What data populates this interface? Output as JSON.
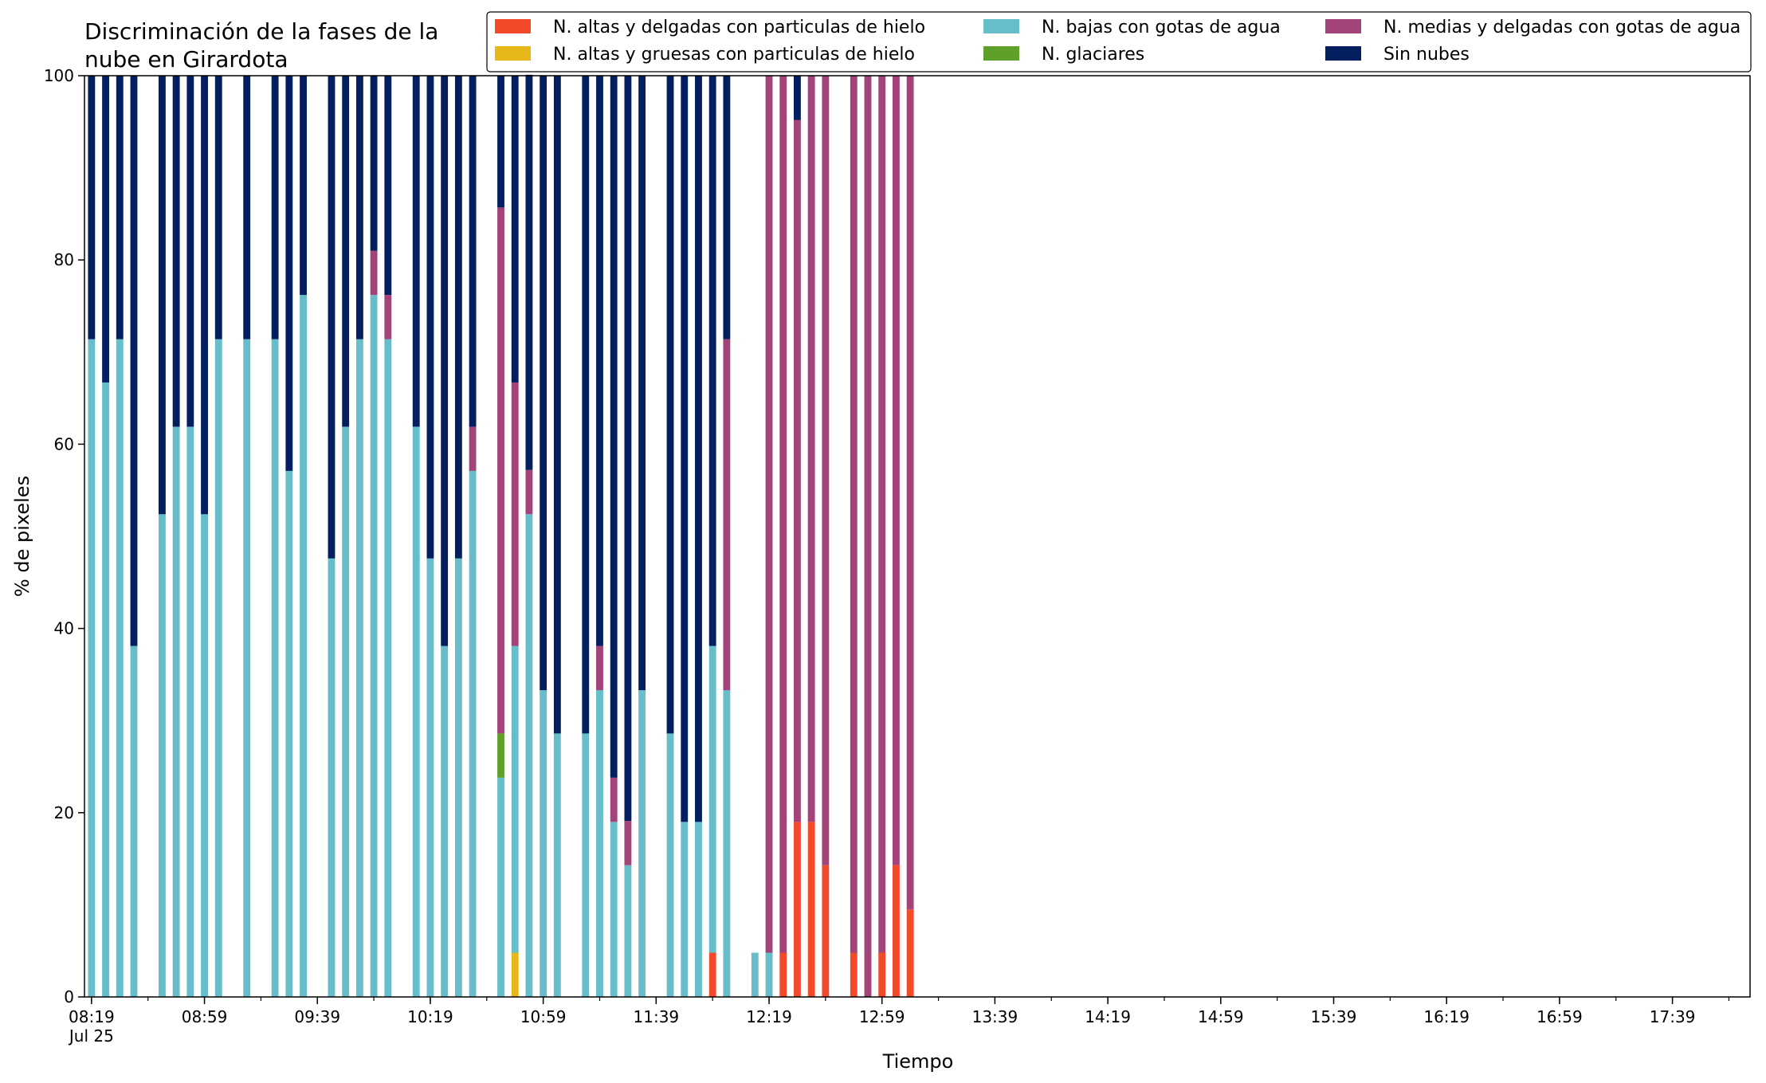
{
  "chart_data": {
    "type": "bar",
    "stacked": true,
    "title": "Discriminación de la fases de la nube en Girardota",
    "title_lines": [
      "Discriminación de la fases de la",
      "nube en Girardota"
    ],
    "xlabel": "Tiempo",
    "ylabel": "% de pixeles",
    "ylim": [
      0,
      100
    ],
    "yticks": [
      0,
      20,
      40,
      60,
      80,
      100
    ],
    "x_start": "08:19",
    "x_end": "18:04",
    "slot_minutes": 5,
    "xticks": [
      {
        "time": "08:19",
        "label": "08:19",
        "sublabel": "Jul 25"
      },
      {
        "time": "08:59",
        "label": "08:59"
      },
      {
        "time": "09:39",
        "label": "09:39"
      },
      {
        "time": "10:19",
        "label": "10:19"
      },
      {
        "time": "10:59",
        "label": "10:59"
      },
      {
        "time": "11:39",
        "label": "11:39"
      },
      {
        "time": "12:19",
        "label": "12:19"
      },
      {
        "time": "12:59",
        "label": "12:59"
      },
      {
        "time": "13:39",
        "label": "13:39"
      },
      {
        "time": "14:19",
        "label": "14:19"
      },
      {
        "time": "14:59",
        "label": "14:59"
      },
      {
        "time": "15:39",
        "label": "15:39"
      },
      {
        "time": "16:19",
        "label": "16:19"
      },
      {
        "time": "16:59",
        "label": "16:59"
      },
      {
        "time": "17:39",
        "label": "17:39"
      }
    ],
    "grid": false,
    "legend_position": "top-right",
    "series": [
      {
        "name": "N. altas y delgadas con particulas de hielo",
        "color": "#f24a2a"
      },
      {
        "name": "N. altas y gruesas con particulas de hielo",
        "color": "#e8b71a"
      },
      {
        "name": "N. bajas con gotas de agua",
        "color": "#67bdc9"
      },
      {
        "name": "N. glaciares",
        "color": "#5fa02a"
      },
      {
        "name": "N. medias y delgadas con gotas de agua",
        "color": "#a2437a"
      },
      {
        "name": "Sin nubes",
        "color": "#031f5f"
      }
    ],
    "stack_order": [
      0,
      1,
      2,
      3,
      4,
      5
    ],
    "legend_order": [
      0,
      1,
      2,
      3,
      4,
      5
    ],
    "bars": [
      {
        "time": "08:19",
        "values": [
          0,
          0,
          71.4,
          0,
          0,
          28.6
        ]
      },
      {
        "time": "08:24",
        "values": [
          0,
          0,
          66.7,
          0,
          0,
          33.3
        ]
      },
      {
        "time": "08:29",
        "values": [
          0,
          0,
          71.4,
          0,
          0,
          28.6
        ]
      },
      {
        "time": "08:34",
        "values": [
          0,
          0,
          38.1,
          0,
          0,
          61.9
        ]
      },
      {
        "time": "08:44",
        "values": [
          0,
          0,
          52.4,
          0,
          0,
          47.6
        ]
      },
      {
        "time": "08:49",
        "values": [
          0,
          0,
          61.9,
          0,
          0,
          38.1
        ]
      },
      {
        "time": "08:54",
        "values": [
          0,
          0,
          61.9,
          0,
          0,
          38.1
        ]
      },
      {
        "time": "08:59",
        "values": [
          0,
          0,
          52.4,
          0,
          0,
          47.6
        ]
      },
      {
        "time": "09:04",
        "values": [
          0,
          0,
          71.4,
          0,
          0,
          28.6
        ]
      },
      {
        "time": "09:14",
        "values": [
          0,
          0,
          71.4,
          0,
          0,
          28.6
        ]
      },
      {
        "time": "09:24",
        "values": [
          0,
          0,
          71.4,
          0,
          0,
          28.6
        ]
      },
      {
        "time": "09:29",
        "values": [
          0,
          0,
          57.1,
          0,
          0,
          42.9
        ]
      },
      {
        "time": "09:34",
        "values": [
          0,
          0,
          76.2,
          0,
          0,
          23.8
        ]
      },
      {
        "time": "09:44",
        "values": [
          0,
          0,
          47.6,
          0,
          0,
          52.4
        ]
      },
      {
        "time": "09:49",
        "values": [
          0,
          0,
          61.9,
          0,
          0,
          38.1
        ]
      },
      {
        "time": "09:54",
        "values": [
          0,
          0,
          71.4,
          0,
          0,
          28.6
        ]
      },
      {
        "time": "09:59",
        "values": [
          0,
          0,
          76.2,
          0,
          4.8,
          19.0
        ]
      },
      {
        "time": "10:04",
        "values": [
          0,
          0,
          71.4,
          0,
          4.8,
          23.8
        ]
      },
      {
        "time": "10:14",
        "values": [
          0,
          0,
          61.9,
          0,
          0,
          38.1
        ]
      },
      {
        "time": "10:19",
        "values": [
          0,
          0,
          47.6,
          0,
          0,
          52.4
        ]
      },
      {
        "time": "10:24",
        "values": [
          0,
          0,
          38.1,
          0,
          0,
          61.9
        ]
      },
      {
        "time": "10:29",
        "values": [
          0,
          0,
          47.6,
          0,
          0,
          52.4
        ]
      },
      {
        "time": "10:34",
        "values": [
          0,
          0,
          57.1,
          0,
          4.8,
          38.1
        ]
      },
      {
        "time": "10:44",
        "values": [
          0,
          0,
          23.8,
          4.8,
          57.1,
          14.3
        ]
      },
      {
        "time": "10:49",
        "values": [
          0,
          4.8,
          33.3,
          0,
          28.6,
          33.3
        ]
      },
      {
        "time": "10:54",
        "values": [
          0,
          0,
          52.4,
          0,
          4.8,
          42.9
        ]
      },
      {
        "time": "10:59",
        "values": [
          0,
          0,
          33.3,
          0,
          0,
          66.7
        ]
      },
      {
        "time": "11:04",
        "values": [
          0,
          0,
          28.6,
          0,
          0,
          71.4
        ]
      },
      {
        "time": "11:14",
        "values": [
          0,
          0,
          28.6,
          0,
          0,
          71.4
        ]
      },
      {
        "time": "11:19",
        "values": [
          0,
          0,
          33.3,
          0,
          4.8,
          61.9
        ]
      },
      {
        "time": "11:24",
        "values": [
          0,
          0,
          19.0,
          0,
          4.8,
          76.2
        ]
      },
      {
        "time": "11:29",
        "values": [
          0,
          0,
          14.3,
          0,
          4.8,
          80.9
        ]
      },
      {
        "time": "11:34",
        "values": [
          0,
          0,
          33.3,
          0,
          0,
          66.7
        ]
      },
      {
        "time": "11:44",
        "values": [
          0,
          0,
          28.6,
          0,
          0,
          71.4
        ]
      },
      {
        "time": "11:49",
        "values": [
          0,
          0,
          19.0,
          0,
          0,
          81.0
        ]
      },
      {
        "time": "11:54",
        "values": [
          0,
          0,
          19.0,
          0,
          0,
          81.0
        ]
      },
      {
        "time": "11:59",
        "values": [
          4.8,
          0,
          33.3,
          0,
          0,
          61.9
        ]
      },
      {
        "time": "12:04",
        "values": [
          0,
          0,
          33.3,
          0,
          38.1,
          28.6
        ]
      },
      {
        "time": "12:14",
        "values": [
          0,
          0,
          4.8,
          0,
          0,
          0
        ]
      },
      {
        "time": "12:19",
        "values": [
          0,
          0,
          4.8,
          0,
          95.2,
          0
        ]
      },
      {
        "time": "12:24",
        "values": [
          4.8,
          0,
          0,
          0,
          95.2,
          0
        ]
      },
      {
        "time": "12:29",
        "values": [
          19.0,
          0,
          0,
          0,
          76.2,
          4.8
        ]
      },
      {
        "time": "12:34",
        "values": [
          19.0,
          0,
          0,
          0,
          81.0,
          0
        ]
      },
      {
        "time": "12:39",
        "values": [
          14.3,
          0,
          0,
          0,
          85.7,
          0
        ]
      },
      {
        "time": "12:49",
        "values": [
          4.8,
          0,
          0,
          0,
          95.2,
          0
        ]
      },
      {
        "time": "12:54",
        "values": [
          0,
          0,
          0,
          0,
          100,
          0
        ]
      },
      {
        "time": "12:59",
        "values": [
          4.8,
          0,
          0,
          0,
          95.2,
          0
        ]
      },
      {
        "time": "13:04",
        "values": [
          14.3,
          0,
          0,
          0,
          85.7,
          0
        ]
      },
      {
        "time": "13:09",
        "values": [
          9.5,
          0,
          0,
          0,
          90.5,
          0
        ]
      }
    ]
  }
}
